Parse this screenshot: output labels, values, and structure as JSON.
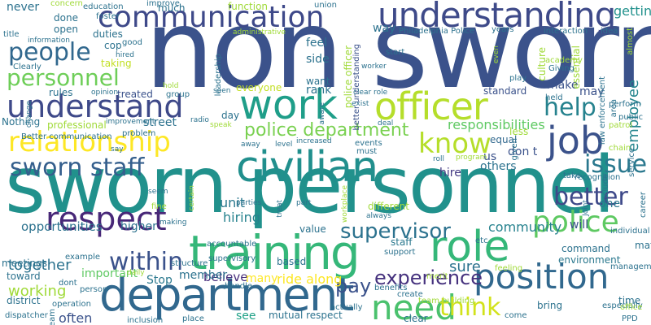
{
  "wordcloud": {
    "background": "#ffffff",
    "words": [
      {
        "text": "non sworn",
        "color": "#3b528b"
      },
      {
        "text": "sworn personnel",
        "color": "#21918c"
      },
      {
        "text": "training",
        "color": "#35b779"
      },
      {
        "text": "department",
        "color": "#31688e"
      },
      {
        "text": "communication",
        "color": "#3e4989"
      },
      {
        "text": "understanding",
        "color": "#3e4a89"
      },
      {
        "text": "work",
        "color": "#1f9e89"
      },
      {
        "text": "officer",
        "color": "#b5de2b"
      },
      {
        "text": "civilian",
        "color": "#218f8d"
      },
      {
        "text": "role",
        "color": "#35b779"
      },
      {
        "text": "position",
        "color": "#31688e"
      },
      {
        "text": "need",
        "color": "#4ac16d"
      },
      {
        "text": "respect",
        "color": "#482878"
      },
      {
        "text": "job",
        "color": "#3b528b"
      },
      {
        "text": "relationship",
        "color": "#fde725"
      },
      {
        "text": "understand",
        "color": "#3e4989"
      },
      {
        "text": "people",
        "color": "#31688e"
      },
      {
        "text": "personnel",
        "color": "#6ece58"
      },
      {
        "text": "sworn staff",
        "color": "#355f8d"
      },
      {
        "text": "police",
        "color": "#5ec962"
      },
      {
        "text": "know",
        "color": "#b5de2b"
      },
      {
        "text": "help",
        "color": "#26828e"
      },
      {
        "text": "issue",
        "color": "#2a788e"
      },
      {
        "text": "police department",
        "color": "#7ad151"
      },
      {
        "text": "supervisor",
        "color": "#2c728e"
      },
      {
        "text": "within",
        "color": "#3b528b"
      },
      {
        "text": "better",
        "color": "#3e4989"
      },
      {
        "text": "think",
        "color": "#d2e21b"
      },
      {
        "text": "pay",
        "color": "#3b528b"
      },
      {
        "text": "experience",
        "color": "#46327e"
      },
      {
        "text": "employee",
        "color": "#25858e"
      },
      {
        "text": "responsibilities",
        "color": "#5ec962"
      },
      {
        "text": "community",
        "color": "#26828e"
      },
      {
        "text": "getting",
        "color": "#21918c"
      },
      {
        "text": "opportunities",
        "color": "#2c728e"
      },
      {
        "text": "together",
        "color": "#2c728e"
      },
      {
        "text": "working",
        "color": "#a0da39"
      },
      {
        "text": "often",
        "color": "#3b528b"
      },
      {
        "text": "ride along",
        "color": "#fde725"
      },
      {
        "text": "environment",
        "color": "#2a788e"
      },
      {
        "text": "Stop",
        "color": "#2a788e"
      },
      {
        "text": "believe",
        "color": "#472d7b"
      },
      {
        "text": "hiring",
        "color": "#26828e"
      },
      {
        "text": "unit",
        "color": "#2a788e"
      },
      {
        "text": "member",
        "color": "#2c728e"
      },
      {
        "text": "important",
        "color": "#5ec962"
      },
      {
        "text": "many",
        "color": "#fde725"
      },
      {
        "text": "see",
        "color": "#1fa187"
      },
      {
        "text": "mutual respect",
        "color": "#2c728e"
      },
      {
        "text": "others",
        "color": "#2c728e"
      },
      {
        "text": "hire",
        "color": "#443983"
      },
      {
        "text": "sure",
        "color": "#2c728e"
      },
      {
        "text": "staff",
        "color": "#2a788e"
      },
      {
        "text": "value",
        "color": "#2c728e"
      },
      {
        "text": "equal",
        "color": "#31688e"
      },
      {
        "text": "make",
        "color": "#3b528b"
      },
      {
        "text": "may",
        "color": "#3b528b"
      },
      {
        "text": "one",
        "color": "#2a788e"
      },
      {
        "text": "will",
        "color": "#3b528b"
      },
      {
        "text": "us",
        "color": "#3b528b"
      },
      {
        "text": "don t",
        "color": "#3b528b"
      },
      {
        "text": "standard",
        "color": "#3b528b"
      },
      {
        "text": "rank",
        "color": "#2c728e"
      },
      {
        "text": "feel",
        "color": "#2c728e"
      },
      {
        "text": "side",
        "color": "#2c728e"
      },
      {
        "text": "want",
        "color": "#2c728e"
      },
      {
        "text": "everyone",
        "color": "#c2df23"
      },
      {
        "text": "street",
        "color": "#2c728e"
      },
      {
        "text": "professional",
        "color": "#a0da39"
      },
      {
        "text": "Nothing",
        "color": "#2c728e"
      },
      {
        "text": "rules",
        "color": "#2c728e"
      },
      {
        "text": "treated",
        "color": "#3b528b"
      },
      {
        "text": "taking",
        "color": "#c2df23"
      },
      {
        "text": "never",
        "color": "#2c728e"
      },
      {
        "text": "done",
        "color": "#2c728e"
      },
      {
        "text": "open",
        "color": "#2c728e"
      },
      {
        "text": "duties",
        "color": "#2c728e"
      },
      {
        "text": "cop",
        "color": "#2c728e"
      },
      {
        "text": "education",
        "color": "#2c728e"
      },
      {
        "text": "much",
        "color": "#2c728e"
      },
      {
        "text": "improve",
        "color": "#2c728e"
      },
      {
        "text": "function",
        "color": "#a0da39"
      },
      {
        "text": "union",
        "color": "#2c728e"
      },
      {
        "text": "way",
        "color": "#2c728e"
      },
      {
        "text": "years",
        "color": "#2c728e"
      },
      {
        "text": "interaction",
        "color": "#2c728e"
      },
      {
        "text": "Philadelphia Police",
        "color": "#2c728e"
      },
      {
        "text": "culture",
        "color": "#a0da39"
      },
      {
        "text": "essential",
        "color": "#a0da39"
      },
      {
        "text": "police officer",
        "color": "#a0da39"
      },
      {
        "text": "better understanding",
        "color": "#3b528b"
      },
      {
        "text": "PPD",
        "color": "#2c728e"
      },
      {
        "text": "clear",
        "color": "#2c728e"
      },
      {
        "text": "create",
        "color": "#2c728e"
      },
      {
        "text": "bring",
        "color": "#2c728e"
      },
      {
        "text": "command",
        "color": "#2c728e"
      },
      {
        "text": "less",
        "color": "#a0da39"
      },
      {
        "text": "time",
        "color": "#2c728e"
      },
      {
        "text": "higher",
        "color": "#2c728e"
      },
      {
        "text": "meetings",
        "color": "#2c728e"
      },
      {
        "text": "toward",
        "color": "#2c728e"
      },
      {
        "text": "district",
        "color": "#2c728e"
      },
      {
        "text": "example",
        "color": "#2c728e"
      },
      {
        "text": "support",
        "color": "#2c728e"
      },
      {
        "text": "benefits",
        "color": "#2c728e"
      },
      {
        "text": "team",
        "color": "#2c728e"
      },
      {
        "text": "dispatcher",
        "color": "#2c728e"
      },
      {
        "text": "operation",
        "color": "#2c728e"
      },
      {
        "text": "inclusion",
        "color": "#2c728e"
      },
      {
        "text": "place",
        "color": "#2c728e"
      },
      {
        "text": "based",
        "color": "#2c728e"
      },
      {
        "text": "different",
        "color": "#a0da39"
      },
      {
        "text": "events",
        "color": "#2c728e"
      },
      {
        "text": "must",
        "color": "#2c728e"
      },
      {
        "text": "day",
        "color": "#2c728e"
      },
      {
        "text": "accountable",
        "color": "#2c728e"
      },
      {
        "text": "given",
        "color": "#2c728e"
      },
      {
        "text": "fine",
        "color": "#a0da39"
      },
      {
        "text": "actually",
        "color": "#2c728e"
      },
      {
        "text": "especially",
        "color": "#2c728e"
      },
      {
        "text": "etc",
        "color": "#2c728e"
      },
      {
        "text": "matter",
        "color": "#2c728e"
      },
      {
        "text": "individual",
        "color": "#2c728e"
      },
      {
        "text": "come",
        "color": "#2c728e"
      },
      {
        "text": "office",
        "color": "#a0da39"
      },
      {
        "text": "structure",
        "color": "#2c728e"
      },
      {
        "text": "supervisory",
        "color": "#2c728e"
      },
      {
        "text": "person",
        "color": "#2c728e"
      },
      {
        "text": "team building",
        "color": "#a0da39"
      },
      {
        "text": "Better communication",
        "color": "#2c728e"
      },
      {
        "text": "Clearly",
        "color": "#2c728e"
      },
      {
        "text": "title",
        "color": "#2c728e"
      },
      {
        "text": "information",
        "color": "#2c728e"
      },
      {
        "text": "concern",
        "color": "#a0da39"
      },
      {
        "text": "foster",
        "color": "#2c728e"
      },
      {
        "text": "good",
        "color": "#2c728e"
      },
      {
        "text": "leadership",
        "color": "#2c728e"
      },
      {
        "text": "administrative",
        "color": "#a0da39"
      },
      {
        "text": "start",
        "color": "#2c728e"
      },
      {
        "text": "play",
        "color": "#2c728e"
      },
      {
        "text": "held",
        "color": "#2c728e"
      },
      {
        "text": "Giving",
        "color": "#2c728e"
      },
      {
        "text": "academy",
        "color": "#a0da39"
      },
      {
        "text": "idea",
        "color": "#2c728e"
      },
      {
        "text": "almost",
        "color": "#a0da39"
      },
      {
        "text": "law enforcement",
        "color": "#2c728e"
      },
      {
        "text": "area",
        "color": "#2c728e"
      },
      {
        "text": "public",
        "color": "#2c728e"
      },
      {
        "text": "patrol",
        "color": "#a0da39"
      },
      {
        "text": "perform",
        "color": "#2c728e"
      },
      {
        "text": "chain",
        "color": "#a0da39"
      },
      {
        "text": "service",
        "color": "#2c728e"
      },
      {
        "text": "career",
        "color": "#2c728e"
      },
      {
        "text": "recognition",
        "color": "#2c728e"
      },
      {
        "text": "take",
        "color": "#2c728e"
      },
      {
        "text": "include",
        "color": "#2c728e"
      },
      {
        "text": "Joint",
        "color": "#2c728e"
      },
      {
        "text": "management",
        "color": "#2c728e"
      },
      {
        "text": "feeling",
        "color": "#a0da39"
      },
      {
        "text": "merit",
        "color": "#a0da39"
      },
      {
        "text": "handle",
        "color": "#2c728e"
      },
      {
        "text": "dont",
        "color": "#2c728e"
      },
      {
        "text": "making",
        "color": "#2c728e"
      },
      {
        "text": "daily",
        "color": "#a0da39"
      },
      {
        "text": "seem",
        "color": "#2c728e"
      },
      {
        "text": "say",
        "color": "#2c728e"
      },
      {
        "text": "problem",
        "color": "#2c728e"
      },
      {
        "text": "improvement",
        "color": "#2c728e"
      },
      {
        "text": "change",
        "color": "#2c728e"
      },
      {
        "text": "opinion",
        "color": "#2c728e"
      },
      {
        "text": "speak",
        "color": "#a0da39"
      },
      {
        "text": "radio",
        "color": "#2c728e"
      },
      {
        "text": "aware",
        "color": "#2c728e"
      },
      {
        "text": "exist",
        "color": "#2c728e"
      },
      {
        "text": "clear role",
        "color": "#2c728e"
      },
      {
        "text": "worker",
        "color": "#2c728e"
      },
      {
        "text": "increased",
        "color": "#2c728e"
      },
      {
        "text": "level",
        "color": "#2c728e"
      },
      {
        "text": "away",
        "color": "#2c728e"
      },
      {
        "text": "parties",
        "color": "#2c728e"
      },
      {
        "text": "part",
        "color": "#2c728e"
      },
      {
        "text": "treat",
        "color": "#2c728e"
      },
      {
        "text": "always",
        "color": "#2c728e"
      },
      {
        "text": "certain",
        "color": "#a0da39"
      },
      {
        "text": "workplace",
        "color": "#a0da39"
      },
      {
        "text": "program",
        "color": "#a0da39"
      },
      {
        "text": "roll",
        "color": "#2c728e"
      },
      {
        "text": "deal",
        "color": "#2c728e"
      },
      {
        "text": "seen",
        "color": "#2c728e"
      },
      {
        "text": "hold",
        "color": "#a0da39"
      },
      {
        "text": "group",
        "color": "#2c728e"
      },
      {
        "text": "hired",
        "color": "#2c728e"
      },
      {
        "text": "even",
        "color": "#a0da39"
      }
    ]
  }
}
